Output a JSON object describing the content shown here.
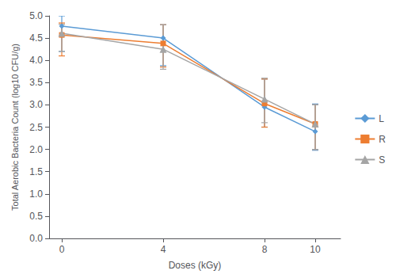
{
  "chart_data": {
    "type": "line",
    "xlabel": "Doses (kGy)",
    "ylabel": "Total Aerobic Bacteria Count (log10 CFU/g)",
    "x": [
      0,
      4,
      8,
      10
    ],
    "series": [
      {
        "name": "L",
        "color": "#5B9BD5",
        "marker": "diamond",
        "values": [
          4.77,
          4.5,
          2.95,
          2.4
        ],
        "yerr_lower": [
          0.57,
          0.62,
          0.45,
          0.42
        ],
        "yerr_upper": [
          0.23,
          0.3,
          0.63,
          0.62
        ]
      },
      {
        "name": "R",
        "color": "#ED7D31",
        "marker": "square",
        "values": [
          4.57,
          4.38,
          3.03,
          2.57
        ],
        "yerr_lower": [
          0.47,
          0.53,
          0.53,
          0.57
        ],
        "yerr_upper": [
          0.27,
          0.42,
          0.55,
          0.43
        ]
      },
      {
        "name": "S",
        "color": "#A5A5A5",
        "marker": "triangle",
        "values": [
          4.61,
          4.25,
          3.13,
          2.57
        ],
        "yerr_lower": [
          0.41,
          0.45,
          0.53,
          0.57
        ],
        "yerr_upper": [
          0.2,
          0.55,
          0.47,
          0.43
        ]
      }
    ],
    "xlim": [
      -0.5,
      11
    ],
    "xticks": [
      0,
      4,
      8,
      10
    ],
    "ylim": [
      0,
      5
    ],
    "yticks": [
      {
        "value": 0,
        "label": "0.0"
      },
      0.5,
      {
        "value": 1,
        "label": "1.0"
      },
      1.5,
      {
        "value": 2,
        "label": "2.0"
      },
      2.5,
      {
        "value": 3,
        "label": "3.0"
      },
      3.5,
      {
        "value": 4,
        "label": "4.0"
      },
      4.5,
      {
        "value": 5,
        "label": "5.0"
      }
    ],
    "grid": false,
    "legend": "right"
  }
}
